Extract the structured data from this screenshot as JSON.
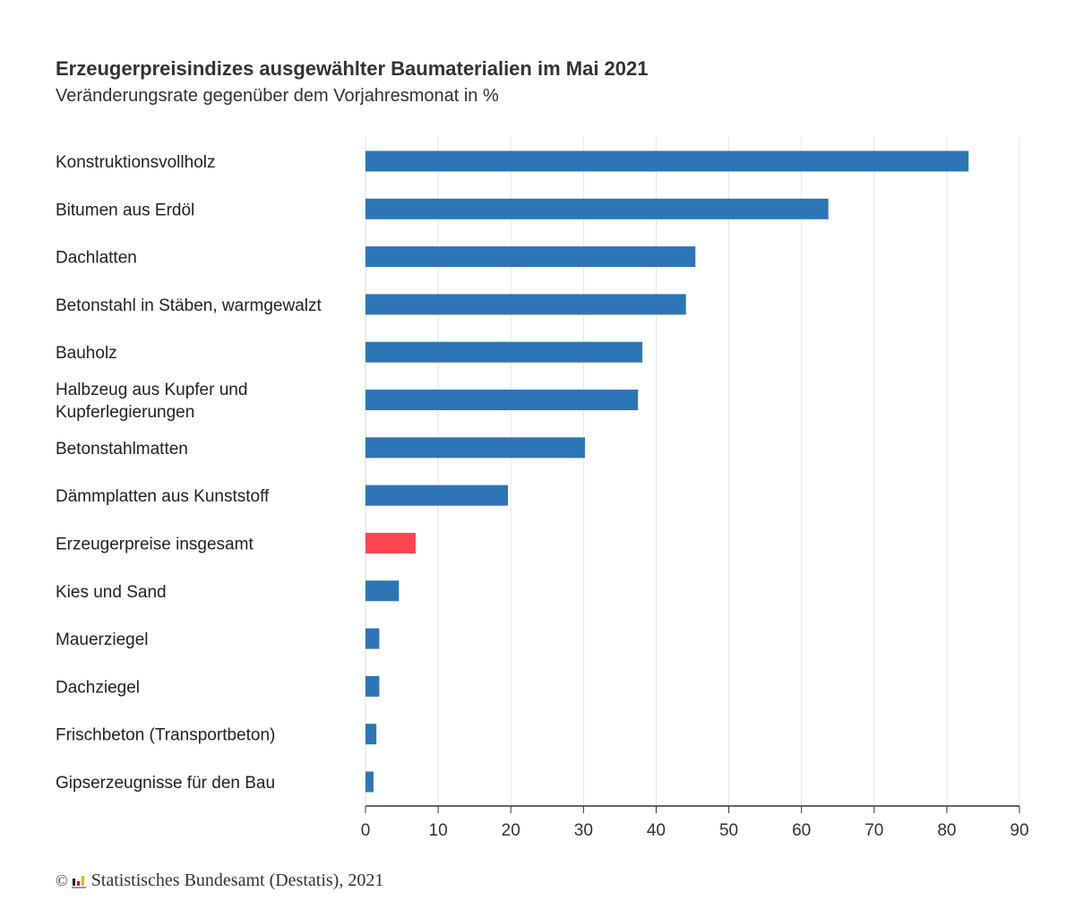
{
  "chart_data": {
    "type": "bar",
    "orientation": "horizontal",
    "title": "Erzeugerpreisindizes ausgewählter Baumaterialien im Mai 2021",
    "subtitle": "Veränderungsrate gegenüber dem Vorjahresmonat in %",
    "categories": [
      [
        "Konstruktionsvollholz"
      ],
      [
        "Bitumen aus Erdöl"
      ],
      [
        "Dachlatten"
      ],
      [
        "Betonstahl in Stäben, warmgewalzt"
      ],
      [
        "Bauholz"
      ],
      [
        "Halbzeug aus Kupfer und",
        "Kupferlegierungen"
      ],
      [
        "Betonstahlmatten"
      ],
      [
        "Dämmplatten aus Kunststoff"
      ],
      [
        "Erzeugerpreise insgesamt"
      ],
      [
        "Kies und Sand"
      ],
      [
        "Mauerziegel"
      ],
      [
        "Dachziegel"
      ],
      [
        "Frischbeton (Transportbeton)"
      ],
      [
        "Gipserzeugnisse für den Bau"
      ]
    ],
    "values": [
      83.0,
      63.7,
      45.4,
      44.1,
      38.1,
      37.5,
      30.2,
      19.6,
      6.9,
      4.6,
      1.9,
      1.9,
      1.5,
      1.1
    ],
    "highlight_index": 8,
    "colors": {
      "bar": "#2e75b6",
      "highlight": "#ff4650",
      "grid": "#e6e6e6",
      "axis": "#333333"
    },
    "xlim": [
      0,
      90
    ],
    "xticks": [
      0,
      10,
      20,
      30,
      40,
      50,
      60,
      70,
      80,
      90
    ],
    "grid": true,
    "xlabel": "",
    "ylabel": ""
  },
  "source": {
    "copyright": "©",
    "text": "Statistisches Bundesamt (Destatis), 2021"
  }
}
